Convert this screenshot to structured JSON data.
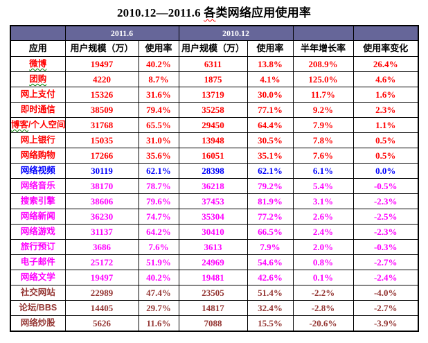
{
  "title": {
    "prefix": "2010.12—2011.6 ",
    "squiggled": "各",
    "suffix": "类网络应用使用率"
  },
  "colors": {
    "header_band_bg": "#666699",
    "header_band_text": "#FFFFFF",
    "border": "#000000",
    "red": "#FF0000",
    "blue": "#0000FF",
    "magenta": "#FF00FF",
    "dark_red": "#953734",
    "squiggle_green": "#008000",
    "squiggle_red": "#FF0000"
  },
  "table": {
    "band_headers": {
      "app": "",
      "period_2011_6": "2011.6",
      "period_2010_12": "2010.12",
      "growth": "",
      "change": ""
    },
    "column_headers": [
      "应用",
      "用户规模（万）",
      "使用率",
      "用户规模（万）",
      "使用率",
      "半年增长率",
      "使用率变化"
    ],
    "rows": [
      {
        "name_squiggled": "微博",
        "name_plain": "",
        "users_2011_6": "19497",
        "rate_2011_6": "40.2%",
        "users_2010_12": "6311",
        "rate_2010_12": "13.8%",
        "half_year_growth": "208.9%",
        "rate_change": "26.4%",
        "color": "red"
      },
      {
        "name_squiggled": "团购",
        "name_plain": "",
        "users_2011_6": "4220",
        "rate_2011_6": "8.7%",
        "users_2010_12": "1875",
        "rate_2010_12": "4.1%",
        "half_year_growth": "125.0%",
        "rate_change": "4.6%",
        "color": "red"
      },
      {
        "name_squiggled": "",
        "name_plain": "网上支付",
        "users_2011_6": "15326",
        "rate_2011_6": "31.6%",
        "users_2010_12": "13719",
        "rate_2010_12": "30.0%",
        "half_year_growth": "11.7%",
        "rate_change": "1.6%",
        "color": "red"
      },
      {
        "name_squiggled": "",
        "name_plain": "即时通信",
        "users_2011_6": "38509",
        "rate_2011_6": "79.4%",
        "users_2010_12": "35258",
        "rate_2010_12": "77.1%",
        "half_year_growth": "9.2%",
        "rate_change": "2.3%",
        "color": "red"
      },
      {
        "name_squiggled": "博客",
        "name_plain": "/个人空间",
        "users_2011_6": "31768",
        "rate_2011_6": "65.5%",
        "users_2010_12": "29450",
        "rate_2010_12": "64.4%",
        "half_year_growth": "7.9%",
        "rate_change": "1.1%",
        "color": "red"
      },
      {
        "name_squiggled": "",
        "name_plain": "网上银行",
        "users_2011_6": "15035",
        "rate_2011_6": "31.0%",
        "users_2010_12": "13948",
        "rate_2010_12": "30.5%",
        "half_year_growth": "7.8%",
        "rate_change": "0.5%",
        "color": "red"
      },
      {
        "name_squiggled": "",
        "name_plain": "网络购物",
        "users_2011_6": "17266",
        "rate_2011_6": "35.6%",
        "users_2010_12": "16051",
        "rate_2010_12": "35.1%",
        "half_year_growth": "7.6%",
        "rate_change": "0.5%",
        "color": "red"
      },
      {
        "name_squiggled": "",
        "name_plain": "网络视频",
        "users_2011_6": "30119",
        "rate_2011_6": "62.1%",
        "users_2010_12": "28398",
        "rate_2010_12": "62.1%",
        "half_year_growth": "6.1%",
        "rate_change": "0.0%",
        "color": "blue"
      },
      {
        "name_squiggled": "",
        "name_plain": "网络音乐",
        "users_2011_6": "38170",
        "rate_2011_6": "78.7%",
        "users_2010_12": "36218",
        "rate_2010_12": "79.2%",
        "half_year_growth": "5.4%",
        "rate_change": "-0.5%",
        "color": "magenta"
      },
      {
        "name_squiggled": "",
        "name_plain": "搜索引擎",
        "users_2011_6": "38606",
        "rate_2011_6": "79.6%",
        "users_2010_12": "37453",
        "rate_2010_12": "81.9%",
        "half_year_growth": "3.1%",
        "rate_change": "-2.3%",
        "color": "magenta"
      },
      {
        "name_squiggled": "",
        "name_plain": "网络新闻",
        "users_2011_6": "36230",
        "rate_2011_6": "74.7%",
        "users_2010_12": "35304",
        "rate_2010_12": "77.2%",
        "half_year_growth": "2.6%",
        "rate_change": "-2.5%",
        "color": "magenta"
      },
      {
        "name_squiggled": "",
        "name_plain": "网络游戏",
        "users_2011_6": "31137",
        "rate_2011_6": "64.2%",
        "users_2010_12": "30410",
        "rate_2010_12": "66.5%",
        "half_year_growth": "2.4%",
        "rate_change": "-2.3%",
        "color": "magenta"
      },
      {
        "name_squiggled": "",
        "name_plain": "旅行预订",
        "users_2011_6": "3686",
        "rate_2011_6": "7.6%",
        "users_2010_12": "3613",
        "rate_2010_12": "7.9%",
        "half_year_growth": "2.0%",
        "rate_change": "-0.3%",
        "color": "magenta"
      },
      {
        "name_squiggled": "",
        "name_plain": "电子邮件",
        "users_2011_6": "25172",
        "rate_2011_6": "51.9%",
        "users_2010_12": "24969",
        "rate_2010_12": "54.6%",
        "half_year_growth": "0.8%",
        "rate_change": "-2.7%",
        "color": "magenta"
      },
      {
        "name_squiggled": "",
        "name_plain": "网络文学",
        "users_2011_6": "19497",
        "rate_2011_6": "40.2%",
        "users_2010_12": "19481",
        "rate_2010_12": "42.6%",
        "half_year_growth": "0.1%",
        "rate_change": "-2.4%",
        "color": "magenta"
      },
      {
        "name_squiggled": "",
        "name_plain": "社交网站",
        "users_2011_6": "22989",
        "rate_2011_6": "47.4%",
        "users_2010_12": "23505",
        "rate_2010_12": "51.4%",
        "half_year_growth": "-2.2%",
        "rate_change": "-4.0%",
        "color": "dark_red"
      },
      {
        "name_squiggled": "",
        "name_plain": "论坛/BBS",
        "users_2011_6": "14405",
        "rate_2011_6": "29.7%",
        "users_2010_12": "14817",
        "rate_2010_12": "32.4%",
        "half_year_growth": "-2.8%",
        "rate_change": "-2.7%",
        "color": "dark_red"
      },
      {
        "name_squiggled": "",
        "name_plain": "网络炒股",
        "users_2011_6": "5626",
        "rate_2011_6": "11.6%",
        "users_2010_12": "7088",
        "rate_2010_12": "15.5%",
        "half_year_growth": "-20.6%",
        "rate_change": "-3.9%",
        "color": "dark_red"
      }
    ]
  }
}
